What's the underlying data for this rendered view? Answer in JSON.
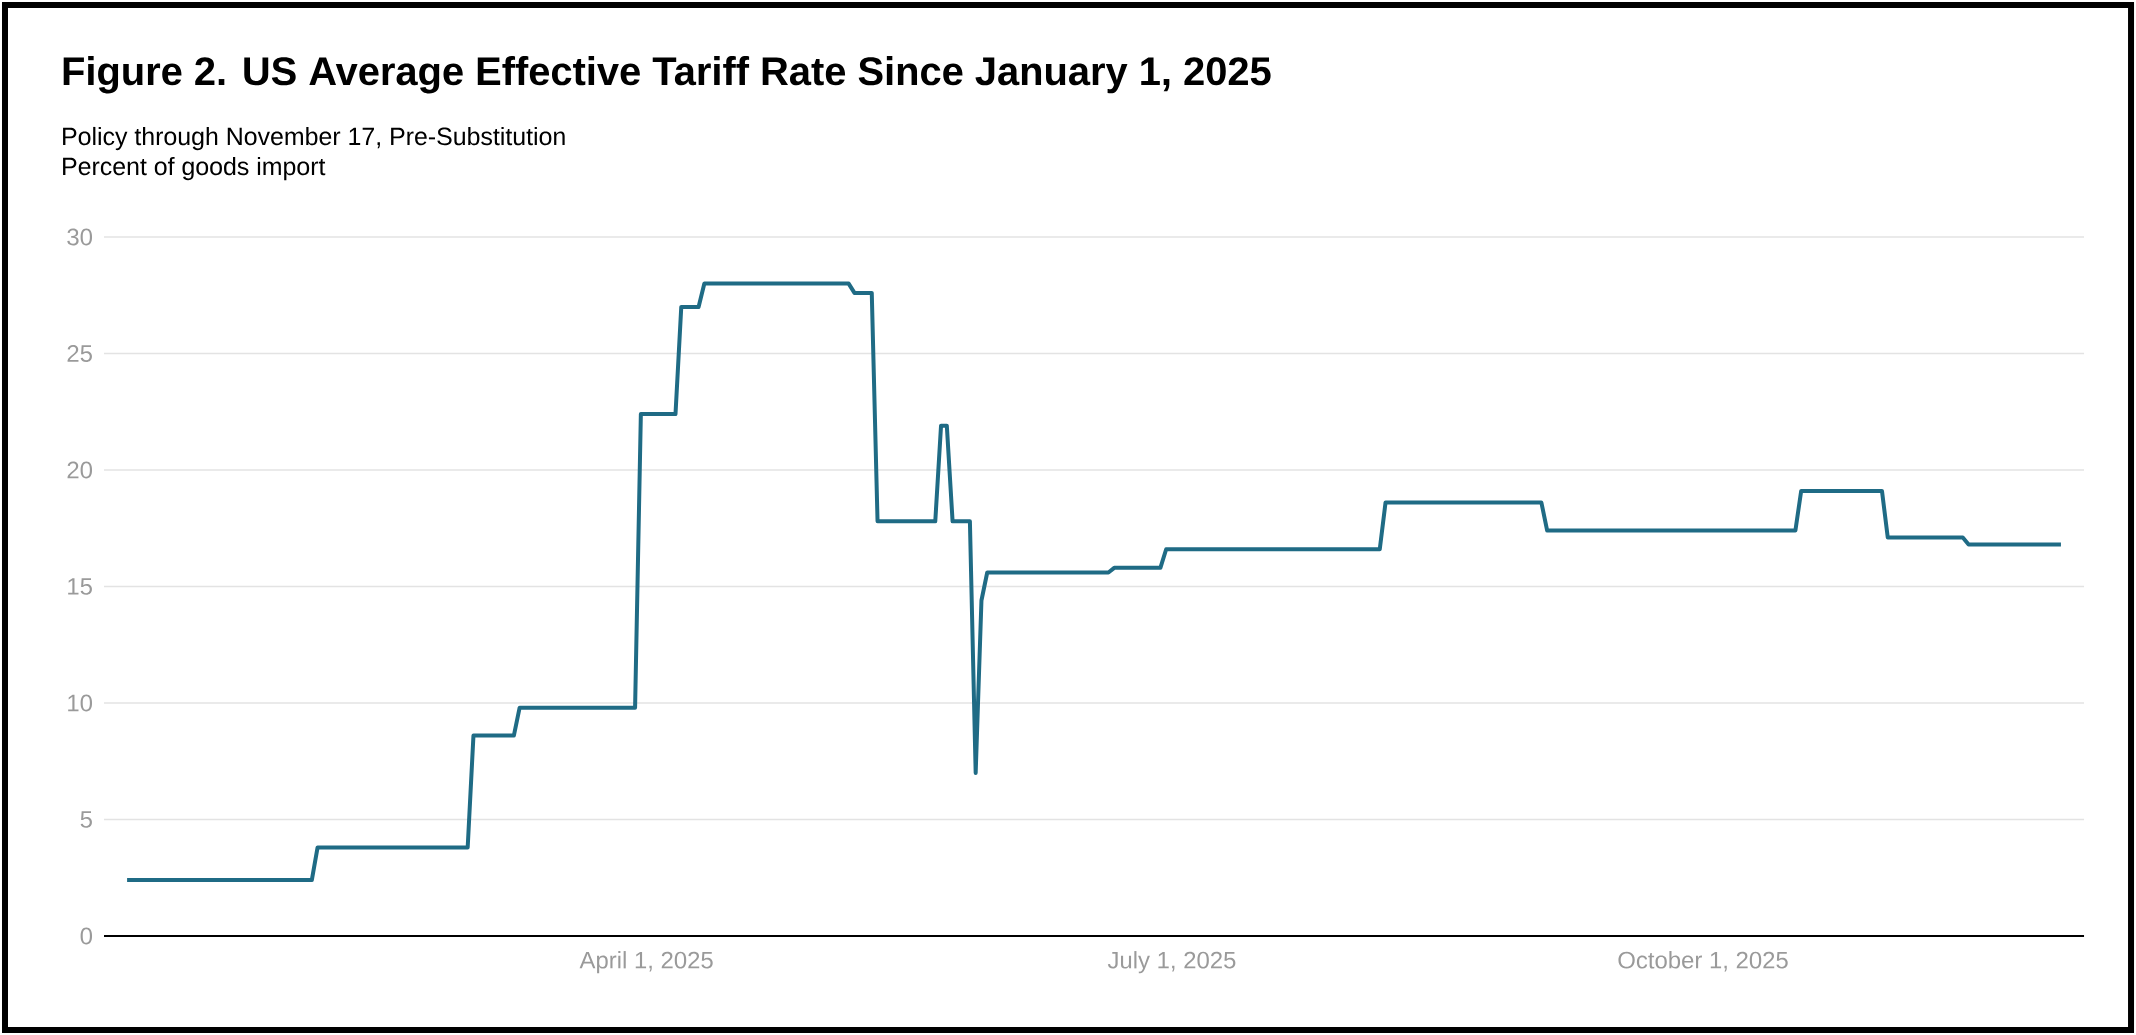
{
  "chart_data": {
    "type": "line",
    "title": "Figure 2. US Average Effective Tariff Rate Since January 1, 2025",
    "subtitle": "Policy through November 17, Pre-Substitution",
    "ylabel": "Percent of goods import",
    "series": [
      {
        "color": "#1f6b85",
        "x": [
          "2025-01-01",
          "2025-02-02",
          "2025-02-03",
          "2025-03-01",
          "2025-03-02",
          "2025-03-09",
          "2025-03-10",
          "2025-03-30",
          "2025-03-31",
          "2025-04-06",
          "2025-04-07",
          "2025-04-10",
          "2025-04-11",
          "2025-05-06",
          "2025-05-07",
          "2025-05-10",
          "2025-05-11",
          "2025-05-21",
          "2025-05-22",
          "2025-05-23",
          "2025-05-24",
          "2025-05-27",
          "2025-05-28",
          "2025-05-29",
          "2025-05-30",
          "2025-06-20",
          "2025-06-21",
          "2025-06-29",
          "2025-06-30",
          "2025-08-06",
          "2025-08-07",
          "2025-09-03",
          "2025-09-04",
          "2025-10-17",
          "2025-10-18",
          "2025-11-01",
          "2025-11-02",
          "2025-11-15",
          "2025-11-16",
          "2025-12-02"
        ],
        "values": [
          2.4,
          2.4,
          3.8,
          3.8,
          8.6,
          8.6,
          9.8,
          9.8,
          22.4,
          22.4,
          27.0,
          27.0,
          28.0,
          28.0,
          27.6,
          27.6,
          17.8,
          17.8,
          21.9,
          21.9,
          17.8,
          17.8,
          7.0,
          14.4,
          15.6,
          15.6,
          15.8,
          15.8,
          16.6,
          16.6,
          18.6,
          18.6,
          17.4,
          17.4,
          19.1,
          19.1,
          17.1,
          17.1,
          16.8,
          16.8
        ]
      }
    ],
    "xlim": [
      "2024-12-28",
      "2025-12-06"
    ],
    "xticks": [
      {
        "value": "2025-04-01",
        "label": "April 1, 2025"
      },
      {
        "value": "2025-07-01",
        "label": "July 1, 2025"
      },
      {
        "value": "2025-10-01",
        "label": "October 1, 2025"
      }
    ],
    "ylim": [
      0,
      30
    ],
    "yticks": [
      0,
      5,
      10,
      15,
      20,
      25,
      30
    ],
    "grid": "y"
  }
}
